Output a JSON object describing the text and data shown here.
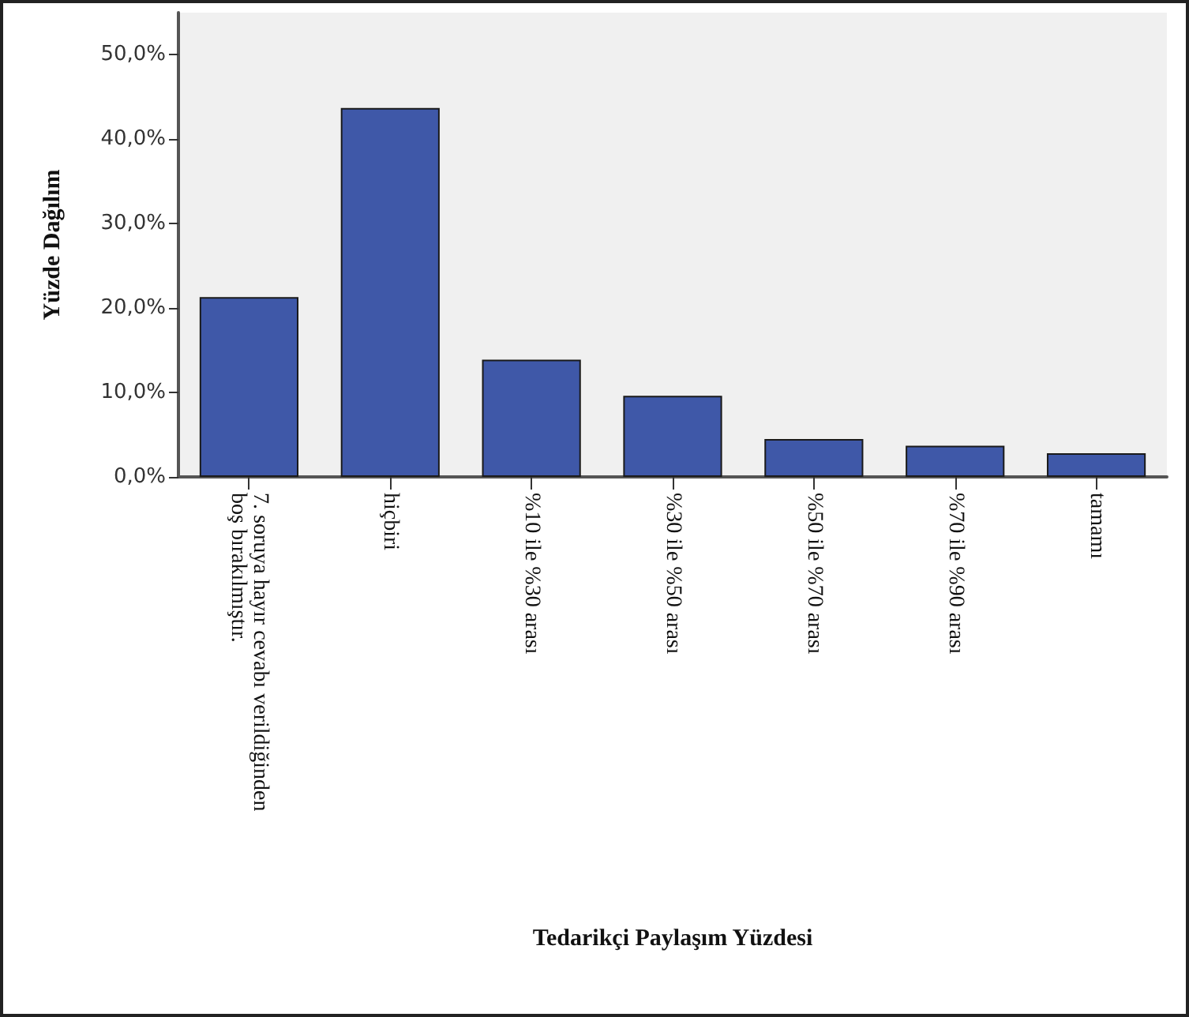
{
  "chart_data": {
    "type": "bar",
    "xlabel": "Tedarikçi Paylaşım Yüzdesi",
    "ylabel": "Yüzde Dağılım",
    "categories": [
      "7. soruya hayır cevabı verildiğinden boş bırakılmıştır.",
      "hiçbiri",
      "%10 ile %30 arası",
      "%30 ile %50 arası",
      "%50 ile %70 arası",
      "%70 ile %90 arası",
      "tamamı"
    ],
    "values": [
      21.3,
      43.7,
      13.9,
      9.6,
      4.5,
      3.7,
      2.8
    ],
    "color": "#3f58a8",
    "ylim": [
      0,
      55
    ],
    "yticks": [
      {
        "value": 0,
        "label": "0,0%"
      },
      {
        "value": 10,
        "label": "10,0%"
      },
      {
        "value": 20,
        "label": "20,0%"
      },
      {
        "value": 30,
        "label": "30,0%"
      },
      {
        "value": 40,
        "label": "40,0%"
      },
      {
        "value": 50,
        "label": "50,0%"
      }
    ],
    "grid": false
  }
}
